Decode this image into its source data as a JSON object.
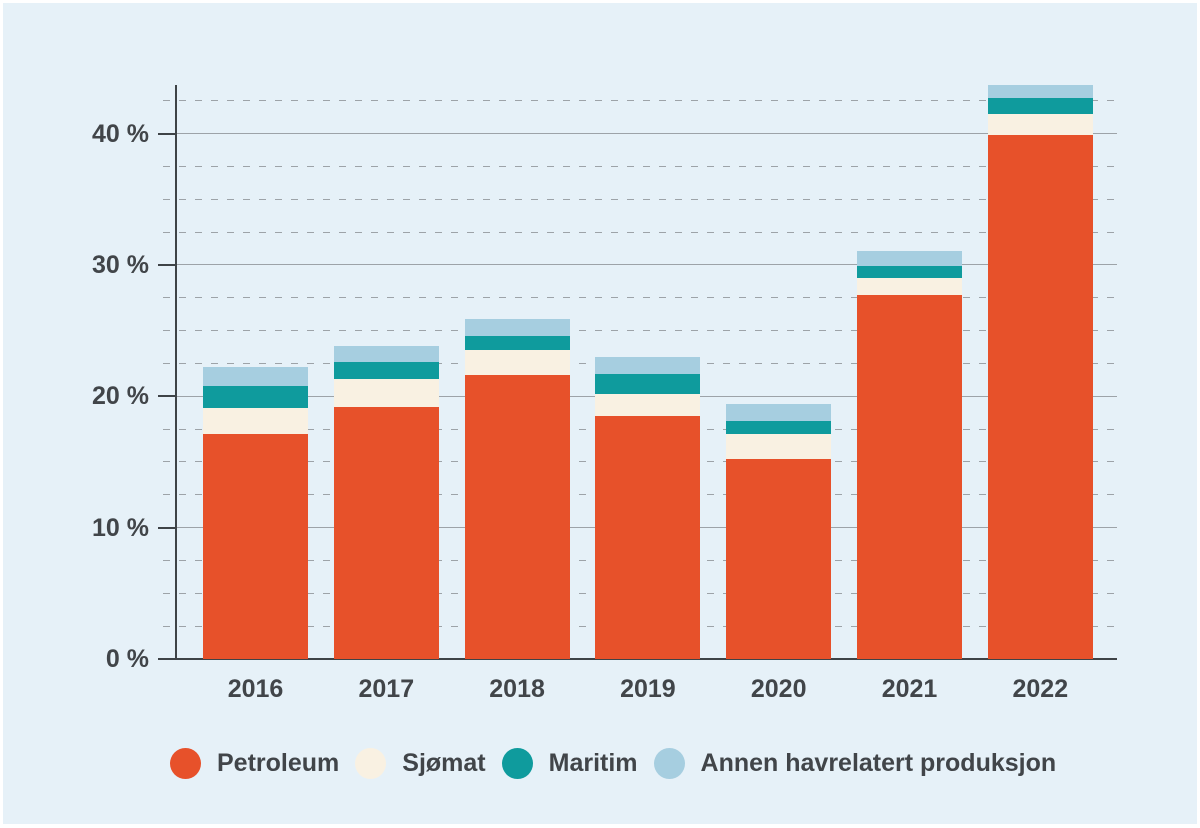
{
  "figure": {
    "background_color": "#E6F1F8",
    "text_color": "#414549",
    "axis_color": "#3E4347",
    "gridline_color": "#9DA3A8"
  },
  "chart_data": {
    "type": "bar",
    "stacked": true,
    "categories": [
      "2016",
      "2017",
      "2018",
      "2019",
      "2020",
      "2021",
      "2022"
    ],
    "series": [
      {
        "name": "Petroleum",
        "color": "#E7512A",
        "values": [
          17.1,
          19.2,
          21.6,
          18.5,
          15.2,
          27.7,
          39.9
        ]
      },
      {
        "name": "Sjømat",
        "color": "#F9F1E2",
        "values": [
          2.0,
          2.1,
          1.9,
          1.7,
          1.9,
          1.3,
          1.6
        ]
      },
      {
        "name": "Maritim",
        "color": "#0F9B9D",
        "values": [
          1.7,
          1.3,
          1.1,
          1.5,
          1.0,
          0.9,
          1.2
        ]
      },
      {
        "name": "Annen havrelatert produksjon",
        "color": "#A6CEE0",
        "values": [
          1.4,
          1.2,
          1.3,
          1.3,
          1.3,
          1.2,
          1.0
        ]
      }
    ],
    "totals": [
      22.2,
      23.8,
      25.9,
      23.0,
      19.4,
      31.1,
      43.7
    ],
    "unit": "%",
    "ylim": [
      0,
      43.7
    ],
    "y_major_ticks": [
      {
        "value": 0,
        "label": "0 %"
      },
      {
        "value": 10,
        "label": "10 %"
      },
      {
        "value": 20,
        "label": "20 %"
      },
      {
        "value": 30,
        "label": "30 %"
      },
      {
        "value": 40,
        "label": "40 %"
      }
    ],
    "y_minor_step": 2.5,
    "grid": "major solid, minor dashed",
    "legend_position": "bottom"
  }
}
